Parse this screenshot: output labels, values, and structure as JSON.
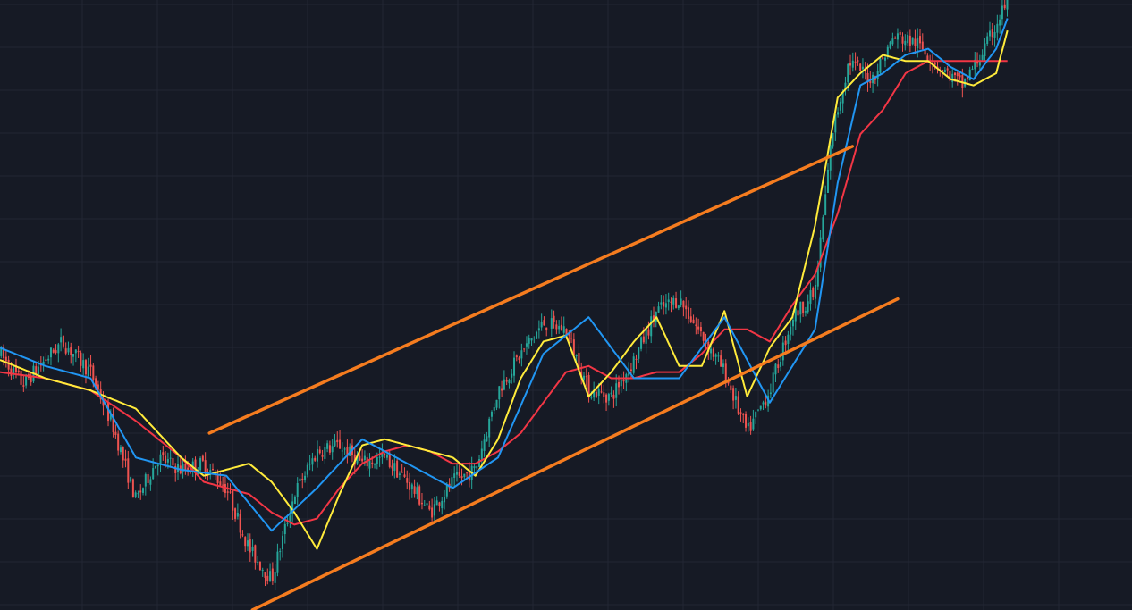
{
  "chart_data": {
    "type": "line",
    "title": "",
    "xlabel": "",
    "ylabel": "",
    "grid": true,
    "legend": "none",
    "xlim": [
      0,
      100
    ],
    "ylim": [
      0,
      100
    ],
    "colors": {
      "background": "#161a25",
      "grid": "#222633",
      "candle_up": "#26a69a",
      "candle_down": "#ef5350",
      "ma_fast": "#f23645",
      "ma_mid": "#ffeb3b",
      "ma_slow": "#2196f3",
      "channel": "#f57c1f"
    },
    "price": {
      "x": [
        0,
        2,
        4,
        5.5,
        8,
        10,
        12,
        14,
        16,
        18,
        20,
        22,
        24,
        26,
        28,
        30,
        32,
        34,
        36,
        38,
        40,
        42,
        44,
        46,
        48,
        50,
        52,
        54,
        56,
        58,
        60,
        62,
        64,
        66,
        68,
        70,
        72,
        73.5,
        75,
        77,
        79,
        81,
        83,
        85,
        87,
        89
      ],
      "y": [
        42,
        37,
        41,
        44,
        39,
        30,
        18,
        25,
        23,
        24,
        20,
        10,
        5,
        19,
        26,
        27,
        24,
        25,
        21,
        16,
        21,
        23,
        36,
        42,
        47,
        46,
        36,
        35,
        41,
        49,
        51,
        45,
        39,
        29,
        36,
        48,
        52,
        78,
        90,
        87,
        94,
        93,
        89,
        86,
        92,
        100
      ]
    },
    "series": [
      {
        "x": [
          0,
          4,
          8,
          12,
          16,
          20,
          24,
          28,
          32,
          36,
          40,
          44,
          48,
          52,
          56,
          60,
          64,
          68,
          72,
          74,
          76,
          78,
          80,
          82,
          84,
          86,
          88,
          89
        ],
        "values": [
          43,
          40,
          38,
          25,
          23,
          22,
          13,
          20,
          28,
          24,
          20,
          25,
          42,
          48,
          38,
          38,
          48,
          34,
          46,
          70,
          86,
          88,
          91,
          92,
          89,
          87,
          92,
          97
        ]
      },
      {
        "x": [
          0,
          4,
          8,
          12,
          16,
          18,
          20,
          22,
          24,
          26,
          28,
          30,
          32,
          34,
          36,
          38,
          40,
          42,
          44,
          46,
          48,
          50,
          52,
          54,
          56,
          58,
          60,
          62,
          64,
          66,
          68,
          70,
          72,
          74,
          76,
          78,
          80,
          82,
          84,
          86,
          88,
          89
        ],
        "values": [
          41,
          38,
          36,
          33,
          25,
          22,
          23,
          24,
          21,
          16,
          10,
          19,
          27,
          28,
          27,
          26,
          25,
          22,
          28,
          38,
          44,
          45,
          35,
          39,
          44,
          48,
          40,
          40,
          49,
          35,
          43,
          48,
          63,
          84,
          88,
          91,
          90,
          90,
          87,
          86,
          88,
          95
        ]
      },
      {
        "x": [
          0,
          4,
          8,
          12,
          16,
          18,
          20,
          22,
          24,
          26,
          28,
          30,
          32,
          34,
          36,
          38,
          40,
          42,
          44,
          46,
          48,
          50,
          52,
          54,
          56,
          58,
          60,
          62,
          64,
          66,
          68,
          70,
          72,
          74,
          76,
          78,
          80,
          82,
          84,
          86,
          88,
          89
        ],
        "values": [
          39,
          38,
          36,
          31,
          25,
          21,
          20,
          19,
          16,
          14,
          15,
          20,
          24,
          26,
          27,
          26,
          24,
          24,
          26,
          29,
          34,
          39,
          40,
          38,
          38,
          39,
          39,
          42,
          46,
          46,
          44,
          50,
          55,
          65,
          78,
          82,
          88,
          90,
          90,
          90,
          90,
          90
        ]
      }
    ],
    "channel": {
      "upper": {
        "x": [
          18.5,
          75.3
        ],
        "y": [
          29,
          76
        ]
      },
      "lower": {
        "x": [
          22.3,
          79.3
        ],
        "y": [
          0,
          51
        ]
      }
    }
  }
}
